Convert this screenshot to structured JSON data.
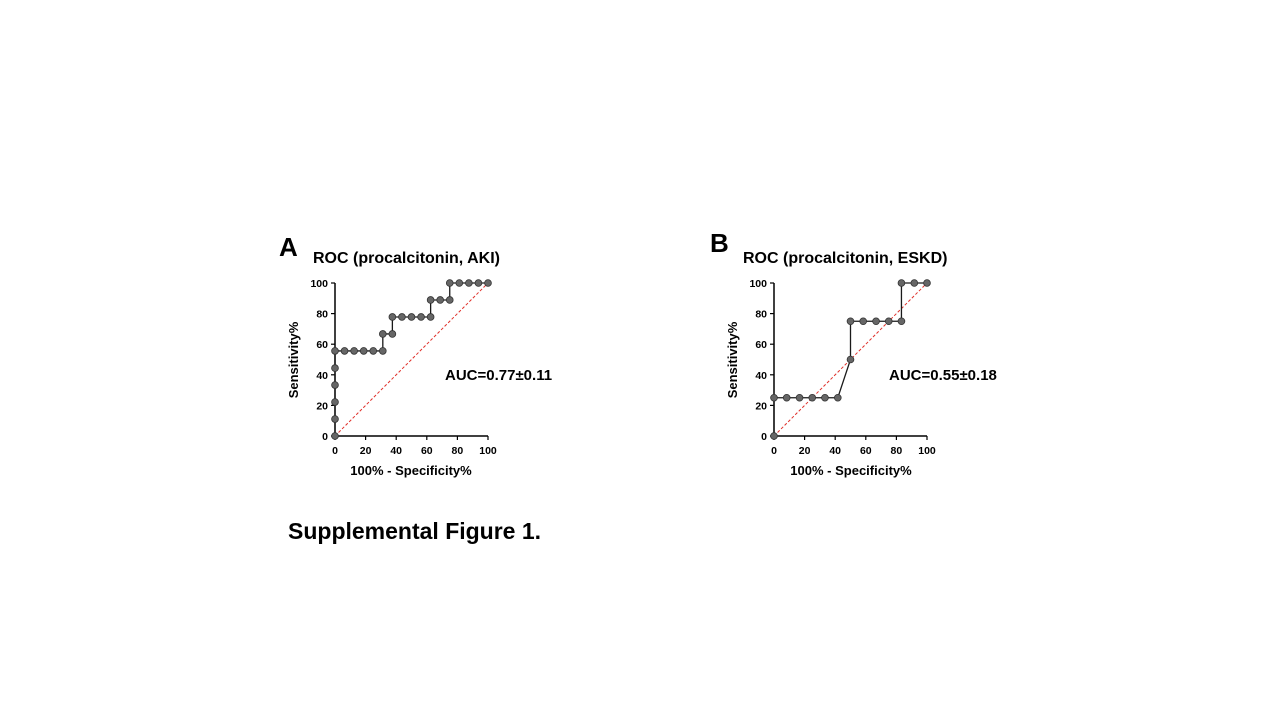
{
  "caption": "Supplemental Figure 1.",
  "colors": {
    "curve": "#1a1a1a",
    "point": "#666666",
    "diagonal": "#e0302a",
    "axis": "#000000"
  },
  "chart_data": [
    {
      "type": "line",
      "panel": "A",
      "title": "ROC (procalcitonin, AKI)",
      "xlabel": "100% - Specificity%",
      "ylabel": "Sensitivity%",
      "xlim": [
        0,
        100
      ],
      "ylim": [
        0,
        100
      ],
      "xticks": [
        "0",
        "20",
        "40",
        "60",
        "80",
        "100"
      ],
      "yticks": [
        "0",
        "20",
        "40",
        "60",
        "80",
        "100"
      ],
      "annotation": "AUC=0.77±0.11",
      "grid": false,
      "reference_line": {
        "style": "dashed",
        "from": [
          0,
          0
        ],
        "to": [
          100,
          100
        ]
      },
      "series": [
        {
          "x": [
            0,
            0,
            0,
            0,
            0,
            0,
            6.25,
            12.5,
            18.75,
            25,
            31.25,
            31.25,
            37.5,
            37.5,
            43.75,
            50,
            56.25,
            62.5,
            62.5,
            68.75,
            75,
            75,
            81.25,
            87.5,
            93.75,
            100
          ],
          "y": [
            0,
            11.1,
            22.2,
            33.3,
            44.4,
            55.6,
            55.6,
            55.6,
            55.6,
            55.6,
            55.6,
            66.7,
            66.7,
            77.8,
            77.8,
            77.8,
            77.8,
            77.8,
            88.9,
            88.9,
            88.9,
            100,
            100,
            100,
            100,
            100
          ]
        }
      ]
    },
    {
      "type": "line",
      "panel": "B",
      "title": "ROC (procalcitonin, ESKD)",
      "xlabel": "100% - Specificity%",
      "ylabel": "Sensitivity%",
      "xlim": [
        0,
        100
      ],
      "ylim": [
        0,
        100
      ],
      "xticks": [
        "0",
        "20",
        "40",
        "60",
        "80",
        "100"
      ],
      "yticks": [
        "0",
        "20",
        "40",
        "60",
        "80",
        "100"
      ],
      "annotation": "AUC=0.55±0.18",
      "grid": false,
      "reference_line": {
        "style": "dashed",
        "from": [
          0,
          0
        ],
        "to": [
          100,
          100
        ]
      },
      "series": [
        {
          "x": [
            0,
            0,
            8.3,
            16.7,
            25,
            33.3,
            41.7,
            50,
            50,
            58.3,
            66.7,
            75,
            83.3,
            83.3,
            91.7,
            100
          ],
          "y": [
            0,
            25,
            25,
            25,
            25,
            25,
            25,
            50,
            75,
            75,
            75,
            75,
            75,
            100,
            100,
            100
          ]
        }
      ]
    }
  ]
}
